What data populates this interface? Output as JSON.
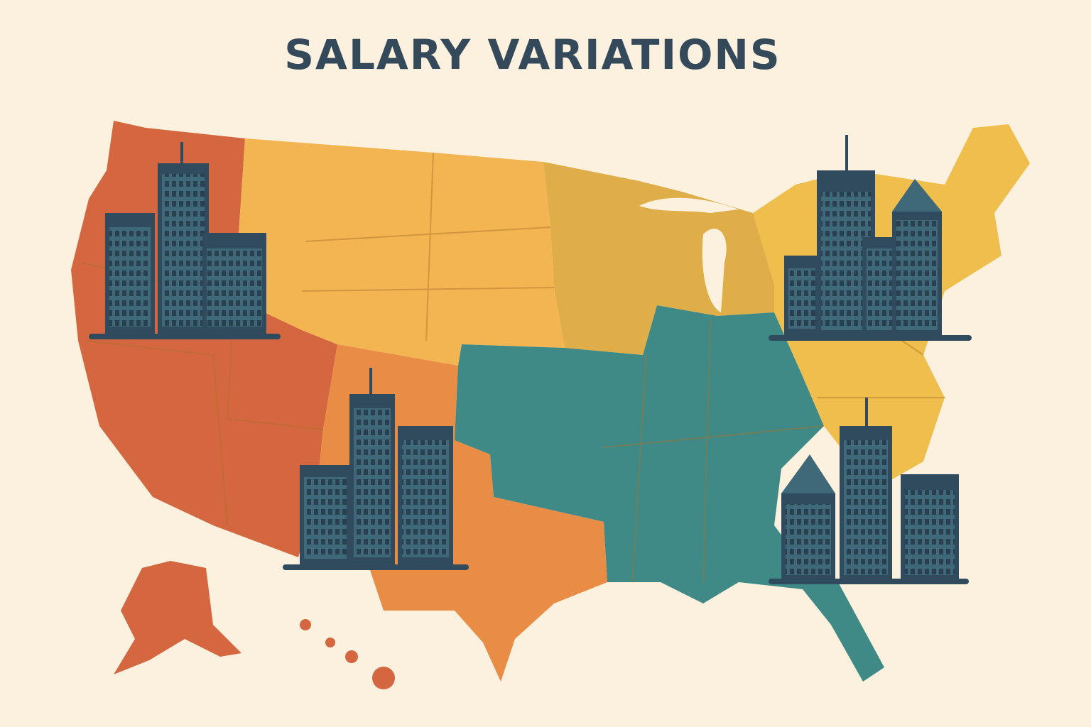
{
  "title": "SALARY VARIATIONS"
}
